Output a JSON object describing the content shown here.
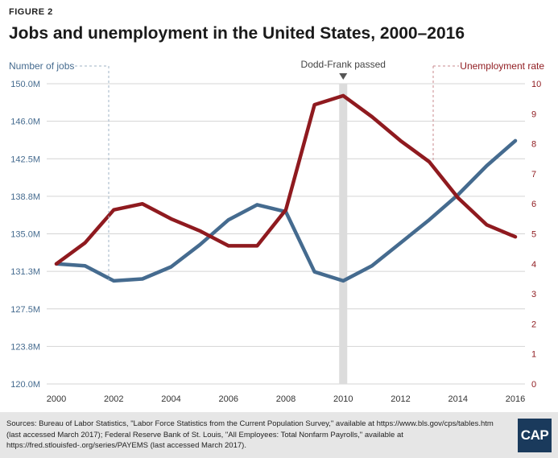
{
  "figure_label": "FIGURE 2",
  "title": "Jobs and unemployment in the United States, 2000–2016",
  "source": "Sources: Bureau of Labor Statistics, \"Labor Force Statistics from the Current Population Survey,\" available at https://www.bls.gov/cps/tables.htm (last accessed March 2017); Federal Reserve Bank of St. Louis, \"All Employees: Total Nonfarm Payrolls,\" available at https://fred.stlouisfed-.org/series/PAYEMS (last accessed March 2017).",
  "logo_text": "CAP",
  "colors": {
    "jobs": "#456b8f",
    "unemployment": "#8f1a1f",
    "annotation_bar": "#dcdcdc"
  },
  "chart_data": {
    "type": "line",
    "title": "Jobs and unemployment in the United States, 2000–2016",
    "x": [
      2000,
      2001,
      2002,
      2003,
      2004,
      2005,
      2006,
      2007,
      2008,
      2009,
      2010,
      2011,
      2012,
      2013,
      2014,
      2015,
      2016
    ],
    "x_ticks": [
      "2000",
      "2002",
      "2004",
      "2006",
      "2008",
      "2010",
      "2012",
      "2014",
      "2016"
    ],
    "xlim": [
      2000,
      2016
    ],
    "series": [
      {
        "name": "Number of jobs",
        "axis": "left",
        "values": [
          132.0,
          131.8,
          130.3,
          130.5,
          131.7,
          133.9,
          136.4,
          137.9,
          137.2,
          131.2,
          130.3,
          131.8,
          134.1,
          136.4,
          138.9,
          141.8,
          144.3
        ]
      },
      {
        "name": "Unemployment rate",
        "axis": "right",
        "values": [
          4.0,
          4.7,
          5.8,
          6.0,
          5.5,
          5.1,
          4.6,
          4.6,
          5.8,
          9.3,
          9.6,
          8.9,
          8.1,
          7.4,
          6.2,
          5.3,
          4.9
        ]
      }
    ],
    "left_axis": {
      "label": "Number of jobs",
      "ylim": [
        120.0,
        150.0
      ],
      "ticks": [
        "120.0M",
        "123.8M",
        "127.5M",
        "131.3M",
        "135.0M",
        "138.8M",
        "142.5M",
        "146.0M",
        "150.0M"
      ]
    },
    "right_axis": {
      "label": "Unemployment rate",
      "ylim": [
        0,
        10
      ],
      "ticks": [
        "0",
        "1",
        "2",
        "3",
        "4",
        "5",
        "6",
        "7",
        "8",
        "9",
        "10"
      ]
    },
    "annotations": [
      {
        "label": "Dodd-Frank passed",
        "x": 2010
      }
    ],
    "grid": true
  }
}
